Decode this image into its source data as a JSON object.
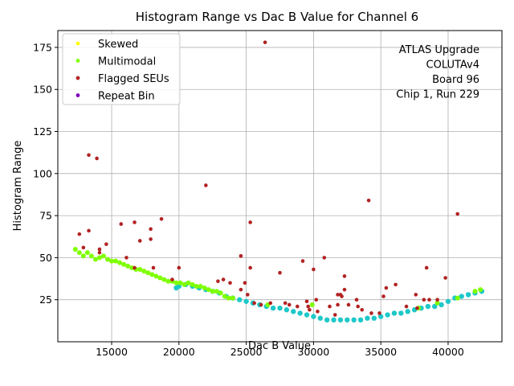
{
  "chart_data": {
    "type": "scatter",
    "title": "Histogram Range vs Dac B Value for Channel 6",
    "xlabel": "Dac B Value",
    "ylabel": "Histogram Range",
    "xlim": [
      11000,
      44000
    ],
    "ylim": [
      0,
      185
    ],
    "xticks": [
      15000,
      20000,
      25000,
      30000,
      35000,
      40000
    ],
    "yticks": [
      25,
      50,
      75,
      100,
      125,
      150,
      175
    ],
    "grid": true,
    "legend_placement": "upper-left",
    "legend": [
      {
        "name": "Skewed",
        "color": "#ffff00"
      },
      {
        "name": "Multimodal",
        "color": "#7fff00"
      },
      {
        "name": "Flagged SEUs",
        "color": "#b22222"
      },
      {
        "name": "Repeat Bin",
        "color": "#8000c0"
      }
    ],
    "annotation": [
      "ATLAS Upgrade",
      "COLUTAv4",
      "Board 96",
      "Chip 1, Run 229"
    ],
    "series": [
      {
        "color": "#1ec8c8",
        "points": [
          [
            19800,
            32
          ],
          [
            20000,
            33
          ],
          [
            20500,
            34
          ],
          [
            21000,
            33
          ],
          [
            21500,
            32
          ],
          [
            22000,
            31
          ],
          [
            22500,
            30
          ],
          [
            23000,
            29
          ],
          [
            23500,
            27
          ],
          [
            24000,
            26
          ],
          [
            24500,
            25
          ],
          [
            25000,
            24
          ],
          [
            25500,
            23
          ],
          [
            26000,
            22
          ],
          [
            26500,
            21
          ],
          [
            27000,
            20
          ],
          [
            27500,
            20
          ],
          [
            28000,
            19
          ],
          [
            28500,
            18
          ],
          [
            29000,
            17
          ],
          [
            29500,
            16
          ],
          [
            30000,
            15
          ],
          [
            30500,
            14
          ],
          [
            31000,
            13
          ],
          [
            31500,
            13
          ],
          [
            32000,
            13
          ],
          [
            32500,
            13
          ],
          [
            33000,
            13
          ],
          [
            33500,
            13
          ],
          [
            34000,
            14
          ],
          [
            34500,
            14
          ],
          [
            35000,
            15
          ],
          [
            35500,
            16
          ],
          [
            36000,
            17
          ],
          [
            36500,
            17
          ],
          [
            37000,
            18
          ],
          [
            37500,
            19
          ],
          [
            38000,
            20
          ],
          [
            38500,
            21
          ],
          [
            39000,
            21
          ],
          [
            39500,
            22
          ],
          [
            40000,
            24
          ],
          [
            40500,
            26
          ],
          [
            41000,
            27
          ],
          [
            41500,
            28
          ],
          [
            42000,
            29
          ],
          [
            42500,
            30
          ]
        ]
      },
      {
        "name": "Multimodal",
        "color": "#7fff00",
        "points": [
          [
            12300,
            55
          ],
          [
            12600,
            53
          ],
          [
            12900,
            51
          ],
          [
            13200,
            53
          ],
          [
            13500,
            51
          ],
          [
            13800,
            49
          ],
          [
            14100,
            50
          ],
          [
            14400,
            51
          ],
          [
            14700,
            49
          ],
          [
            15000,
            48
          ],
          [
            15300,
            48
          ],
          [
            15600,
            47
          ],
          [
            15900,
            46
          ],
          [
            16200,
            45
          ],
          [
            16500,
            44
          ],
          [
            16800,
            43
          ],
          [
            17100,
            43
          ],
          [
            17400,
            42
          ],
          [
            17700,
            41
          ],
          [
            18000,
            40
          ],
          [
            18300,
            39
          ],
          [
            18600,
            38
          ],
          [
            18900,
            37
          ],
          [
            19200,
            36
          ],
          [
            19500,
            36
          ],
          [
            19800,
            35
          ],
          [
            20100,
            35
          ],
          [
            20400,
            34
          ],
          [
            20700,
            35
          ],
          [
            21000,
            34
          ],
          [
            21300,
            33
          ],
          [
            21600,
            33
          ],
          [
            21900,
            32
          ],
          [
            22200,
            31
          ],
          [
            22500,
            30
          ],
          [
            22800,
            30
          ],
          [
            23100,
            29
          ],
          [
            23400,
            27
          ],
          [
            23700,
            26
          ],
          [
            24000,
            26
          ],
          [
            26600,
            22
          ],
          [
            29900,
            22
          ],
          [
            37800,
            20
          ],
          [
            39200,
            23
          ],
          [
            40700,
            26
          ],
          [
            42000,
            30
          ],
          [
            42400,
            31
          ]
        ]
      },
      {
        "name": "Flagged SEUs",
        "color": "#b22222",
        "points": [
          [
            12600,
            64
          ],
          [
            12900,
            56
          ],
          [
            13300,
            111
          ],
          [
            13300,
            66
          ],
          [
            13900,
            109
          ],
          [
            14100,
            53
          ],
          [
            14100,
            55
          ],
          [
            14600,
            58
          ],
          [
            15700,
            70
          ],
          [
            16100,
            50
          ],
          [
            16700,
            71
          ],
          [
            16700,
            44
          ],
          [
            17100,
            60
          ],
          [
            17900,
            67
          ],
          [
            17900,
            61
          ],
          [
            18100,
            44
          ],
          [
            18700,
            73
          ],
          [
            19500,
            37
          ],
          [
            20000,
            44
          ],
          [
            22000,
            93
          ],
          [
            22900,
            36
          ],
          [
            23300,
            37
          ],
          [
            23800,
            35
          ],
          [
            24600,
            31
          ],
          [
            24600,
            51
          ],
          [
            24900,
            35
          ],
          [
            25100,
            28
          ],
          [
            25300,
            71
          ],
          [
            25300,
            44
          ],
          [
            25600,
            23
          ],
          [
            26100,
            22
          ],
          [
            26400,
            178
          ],
          [
            26800,
            23
          ],
          [
            27500,
            41
          ],
          [
            27900,
            23
          ],
          [
            28200,
            22
          ],
          [
            28800,
            21
          ],
          [
            29200,
            48
          ],
          [
            29500,
            24
          ],
          [
            29600,
            21
          ],
          [
            29700,
            19
          ],
          [
            30000,
            43
          ],
          [
            30200,
            25
          ],
          [
            30300,
            18
          ],
          [
            30800,
            50
          ],
          [
            31200,
            21
          ],
          [
            31600,
            16
          ],
          [
            31800,
            28
          ],
          [
            31800,
            22
          ],
          [
            32000,
            28
          ],
          [
            32100,
            27
          ],
          [
            32300,
            39
          ],
          [
            32300,
            31
          ],
          [
            32600,
            22
          ],
          [
            33200,
            25
          ],
          [
            33300,
            21
          ],
          [
            33600,
            19
          ],
          [
            34100,
            84
          ],
          [
            34300,
            17
          ],
          [
            34900,
            17
          ],
          [
            35200,
            27
          ],
          [
            35400,
            32
          ],
          [
            36100,
            34
          ],
          [
            36900,
            21
          ],
          [
            37600,
            28
          ],
          [
            37700,
            20
          ],
          [
            38200,
            25
          ],
          [
            38400,
            44
          ],
          [
            38600,
            25
          ],
          [
            39200,
            25
          ],
          [
            39800,
            38
          ],
          [
            40700,
            76
          ]
        ]
      }
    ]
  }
}
